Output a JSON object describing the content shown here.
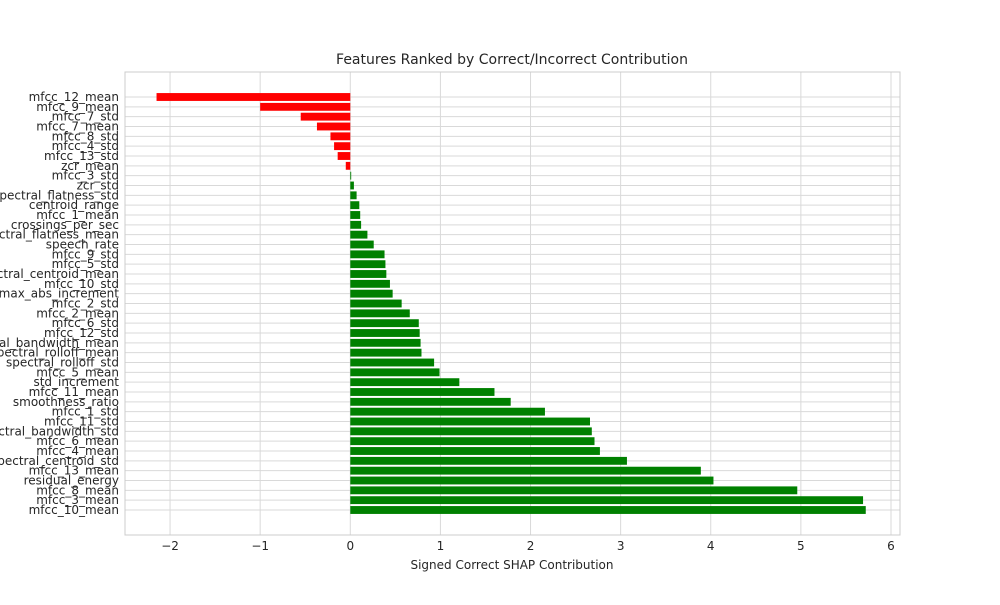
{
  "chart_data": {
    "type": "bar",
    "orientation": "horizontal",
    "title": "Features Ranked by Correct/Incorrect Contribution",
    "xlabel": "Signed Correct SHAP Contribution",
    "ylabel": "",
    "xlim": [
      -2.5,
      6.1
    ],
    "xticks": [
      -2,
      -1,
      0,
      1,
      2,
      3,
      4,
      5,
      6
    ],
    "grid": true,
    "colors": {
      "positive": "#008000",
      "negative": "#ff0000",
      "grid": "#d9d9d9",
      "frame": "#cccccc"
    },
    "categories": [
      "mfcc_12_mean",
      "mfcc_9_mean",
      "mfcc_7_std",
      "mfcc_7_mean",
      "mfcc_8_std",
      "mfcc_4_std",
      "mfcc_13_std",
      "zcr_mean",
      "mfcc_3_std",
      "zcr_std",
      "spectral_flatness_std",
      "centroid_range",
      "mfcc_1_mean",
      "crossings_per_sec",
      "spectral_flatness_mean",
      "speech_rate",
      "mfcc_9_std",
      "mfcc_5_std",
      "spectral_centroid_mean",
      "mfcc_10_std",
      "max_abs_increment",
      "mfcc_2_std",
      "mfcc_2_mean",
      "mfcc_6_std",
      "mfcc_12_std",
      "spectral_bandwidth_mean",
      "spectral_rolloff_mean",
      "spectral_rolloff_std",
      "mfcc_5_mean",
      "std_increment",
      "mfcc_11_mean",
      "smoothness_ratio",
      "mfcc_1_std",
      "mfcc_11_std",
      "spectral_bandwidth_std",
      "mfcc_6_mean",
      "mfcc_4_mean",
      "spectral_centroid_std",
      "mfcc_13_mean",
      "residual_energy",
      "mfcc_8_mean",
      "mfcc_3_mean",
      "mfcc_10_mean"
    ],
    "values": [
      -2.15,
      -1.0,
      -0.55,
      -0.37,
      -0.22,
      -0.18,
      -0.14,
      -0.05,
      0.01,
      0.04,
      0.07,
      0.1,
      0.11,
      0.12,
      0.19,
      0.26,
      0.38,
      0.39,
      0.4,
      0.44,
      0.47,
      0.57,
      0.66,
      0.76,
      0.77,
      0.78,
      0.79,
      0.93,
      0.99,
      1.21,
      1.6,
      1.78,
      2.16,
      2.66,
      2.68,
      2.71,
      2.77,
      3.07,
      3.89,
      4.03,
      4.96,
      5.69,
      5.72
    ]
  }
}
